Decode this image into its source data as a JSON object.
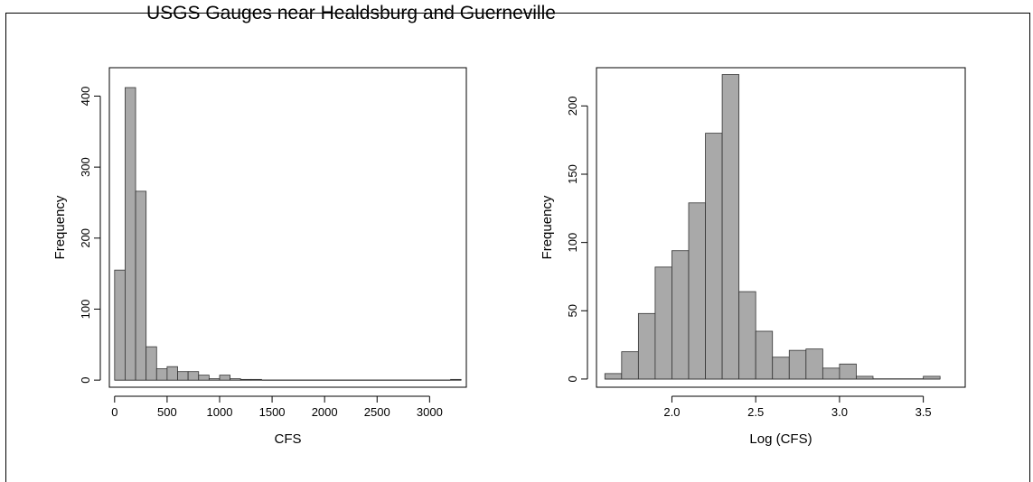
{
  "page": {
    "title": "USGS Gauges near Healdsburg and Guerneville"
  },
  "chart_data": [
    {
      "type": "bar",
      "title": "",
      "xlabel": "CFS",
      "ylabel": "Frequency",
      "xlim": [
        -50,
        3350
      ],
      "ylim": [
        -10,
        440
      ],
      "xticks": [
        0,
        500,
        1000,
        1500,
        2000,
        2500,
        3000
      ],
      "yticks": [
        0,
        100,
        200,
        300,
        400
      ],
      "bin_width": 100,
      "bins": [
        {
          "x0": 0,
          "x1": 100,
          "count": 155
        },
        {
          "x0": 100,
          "x1": 200,
          "count": 412
        },
        {
          "x0": 200,
          "x1": 300,
          "count": 266
        },
        {
          "x0": 300,
          "x1": 400,
          "count": 47
        },
        {
          "x0": 400,
          "x1": 500,
          "count": 16
        },
        {
          "x0": 500,
          "x1": 600,
          "count": 19
        },
        {
          "x0": 600,
          "x1": 700,
          "count": 12
        },
        {
          "x0": 700,
          "x1": 800,
          "count": 12
        },
        {
          "x0": 800,
          "x1": 900,
          "count": 7
        },
        {
          "x0": 900,
          "x1": 1000,
          "count": 2
        },
        {
          "x0": 1000,
          "x1": 1100,
          "count": 7
        },
        {
          "x0": 1100,
          "x1": 1200,
          "count": 2
        },
        {
          "x0": 1200,
          "x1": 1300,
          "count": 1
        },
        {
          "x0": 1300,
          "x1": 1400,
          "count": 1
        },
        {
          "x0": 3200,
          "x1": 3300,
          "count": 1
        }
      ],
      "grid": false,
      "bar_color": "#a9a9a9"
    },
    {
      "type": "bar",
      "title": "",
      "xlabel": "Log (CFS)",
      "ylabel": "Frequency",
      "xlim": [
        1.55,
        3.75
      ],
      "ylim": [
        -6,
        228
      ],
      "xticks": [
        2.0,
        2.5,
        3.0,
        3.5
      ],
      "xtick_labels": [
        "2.0",
        "2.5",
        "3.0",
        "3.5"
      ],
      "yticks": [
        0,
        50,
        100,
        150,
        200
      ],
      "bin_width": 0.1,
      "bins": [
        {
          "x0": 1.6,
          "x1": 1.7,
          "count": 4
        },
        {
          "x0": 1.7,
          "x1": 1.8,
          "count": 20
        },
        {
          "x0": 1.8,
          "x1": 1.9,
          "count": 48
        },
        {
          "x0": 1.9,
          "x1": 2.0,
          "count": 82
        },
        {
          "x0": 2.0,
          "x1": 2.1,
          "count": 94
        },
        {
          "x0": 2.1,
          "x1": 2.2,
          "count": 129
        },
        {
          "x0": 2.2,
          "x1": 2.3,
          "count": 180
        },
        {
          "x0": 2.3,
          "x1": 2.4,
          "count": 223
        },
        {
          "x0": 2.4,
          "x1": 2.5,
          "count": 64
        },
        {
          "x0": 2.5,
          "x1": 2.6,
          "count": 35
        },
        {
          "x0": 2.6,
          "x1": 2.7,
          "count": 16
        },
        {
          "x0": 2.7,
          "x1": 2.8,
          "count": 21
        },
        {
          "x0": 2.8,
          "x1": 2.9,
          "count": 22
        },
        {
          "x0": 2.9,
          "x1": 3.0,
          "count": 8
        },
        {
          "x0": 3.0,
          "x1": 3.1,
          "count": 11
        },
        {
          "x0": 3.1,
          "x1": 3.2,
          "count": 2
        },
        {
          "x0": 3.5,
          "x1": 3.6,
          "count": 2
        }
      ],
      "grid": false,
      "bar_color": "#a9a9a9"
    }
  ]
}
